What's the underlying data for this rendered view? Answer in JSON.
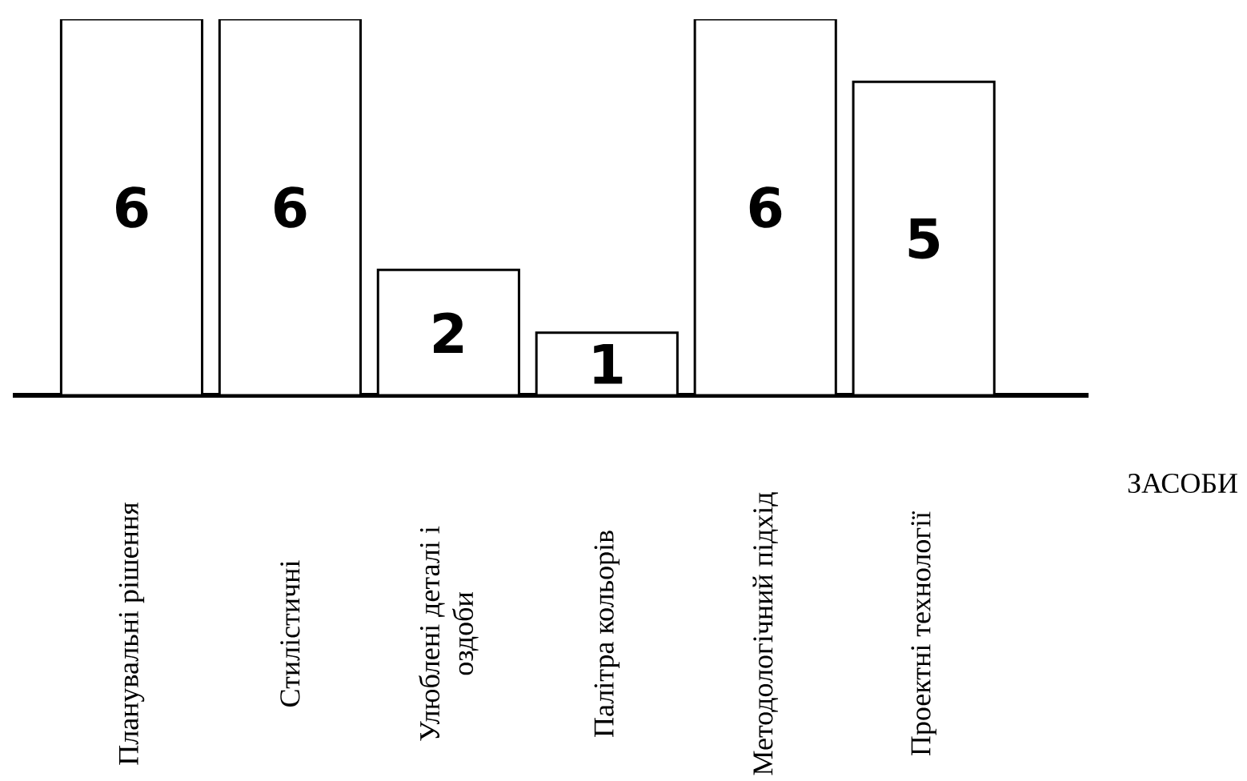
{
  "chart_data": {
    "type": "bar",
    "xlabel": "ЗАСОБИ",
    "categories": [
      "Планувальні рішення",
      "Стилістичні",
      "Улюблені деталі і оздоби",
      "Палітра кольорів",
      "Методологічний підхід",
      "Проектні технології"
    ],
    "values": [
      6,
      6,
      2,
      1,
      6,
      5
    ],
    "color": "#ffffff",
    "data_labels": true,
    "tick_labels": "x"
  }
}
